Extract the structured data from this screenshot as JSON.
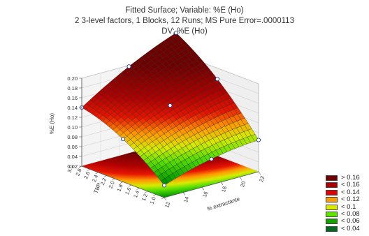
{
  "chart_data": {
    "type": "surface3d",
    "title": "Fitted Surface; Variable: %E (Ho)",
    "subtitle": "2 3-level factors, 1 Blocks, 12 Runs; MS Pure Error=.0000113",
    "subtitle2": "DV: %E (Ho)",
    "x_label": "% extractante",
    "y_label": "TBP",
    "z_label": "%E (Ho)",
    "x_ticks": [
      "12",
      "14",
      "16",
      "18",
      "20",
      "22"
    ],
    "y_ticks": [
      "1.0",
      "1.2",
      "1.4",
      "1.6",
      "1.8",
      "2.0",
      "2.2",
      "2.4",
      "2.6",
      "2.8",
      "3.0"
    ],
    "z_ticks": [
      "0.02",
      "0.04",
      "0.06",
      "0.08",
      "0.10",
      "0.12",
      "0.14",
      "0.16",
      "0.18",
      "0.20"
    ],
    "x_range": [
      12,
      22
    ],
    "y_range": [
      1.0,
      3.0
    ],
    "z_range": [
      0.02,
      0.2
    ],
    "grid": true,
    "legend": [
      {
        "label": "> 0.16",
        "color": "#6e0000"
      },
      {
        "label": "< 0.16",
        "color": "#a80000"
      },
      {
        "label": "< 0.14",
        "color": "#e00000"
      },
      {
        "label": "< 0.12",
        "color": "#ff9a00"
      },
      {
        "label": "< 0.1",
        "color": "#dcea00"
      },
      {
        "label": "< 0.08",
        "color": "#5ee600"
      },
      {
        "label": "< 0.06",
        "color": "#15a000"
      },
      {
        "label": "< 0.04",
        "color": "#006b1e"
      }
    ],
    "surface_model": {
      "description": "quadratic fit over x=12..22, y=1..3",
      "points": [
        {
          "x": 12,
          "y": 1.0,
          "z": 0.025
        },
        {
          "x": 12,
          "y": 3.0,
          "z": 0.14
        },
        {
          "x": 22,
          "y": 1.0,
          "z": 0.095
        },
        {
          "x": 22,
          "y": 3.0,
          "z": 0.19
        },
        {
          "x": 17,
          "y": 2.0,
          "z": 0.15
        }
      ]
    }
  }
}
